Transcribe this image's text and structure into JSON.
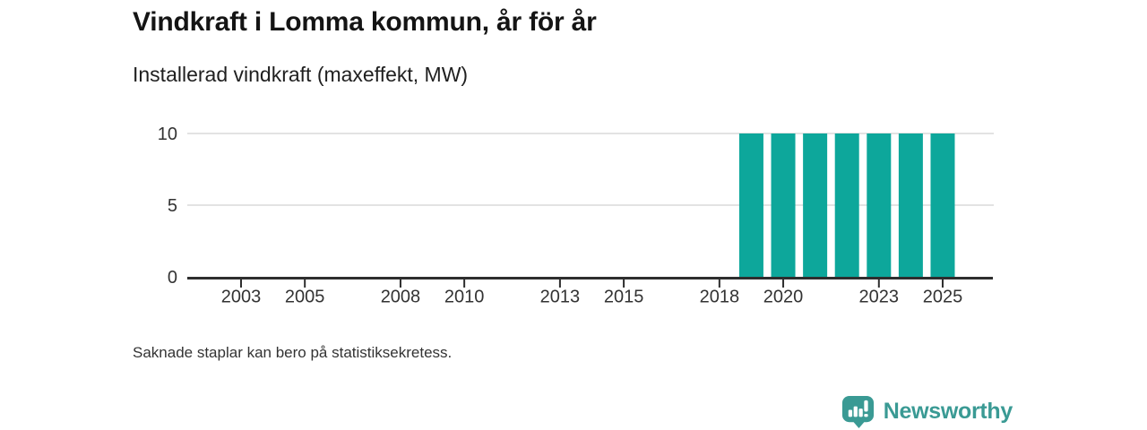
{
  "header": {
    "title": "Vindkraft i Lomma kommun, år för år",
    "subtitle": "Installerad vindkraft (maxeffekt, MW)"
  },
  "footnote": "Saknade staplar kan bero på statistiksekretess.",
  "branding": {
    "name": "Newsworthy",
    "icon": "newsworthy-pin-barchart-icon",
    "color": "#3a9a94",
    "icon_color": "#3a9a94"
  },
  "chart_data": {
    "type": "bar",
    "title": "Vindkraft i Lomma kommun, år för år",
    "subtitle": "Installerad vindkraft (maxeffekt, MW)",
    "ylabel": "Installerad vindkraft (maxeffekt, MW)",
    "xlabel": "",
    "unit": "MW",
    "x": [
      2019,
      2020,
      2021,
      2022,
      2023,
      2024,
      2025
    ],
    "values": [
      10,
      10,
      10,
      10,
      10,
      10,
      10
    ],
    "x_ticks": [
      2003,
      2005,
      2008,
      2010,
      2013,
      2015,
      2018,
      2020,
      2023,
      2025
    ],
    "y_ticks": [
      0,
      5,
      10
    ],
    "xlim": [
      2001.3,
      2026.6
    ],
    "ylim": [
      0,
      10
    ],
    "grid": "horizontal",
    "legend": "none",
    "colors": {
      "bar": "#0da79b",
      "axis": "#2e2e2e",
      "gridline": "#e3e3e3",
      "tick_label": "#333333"
    },
    "note": "Saknade staplar kan bero på statistiksekretess."
  }
}
